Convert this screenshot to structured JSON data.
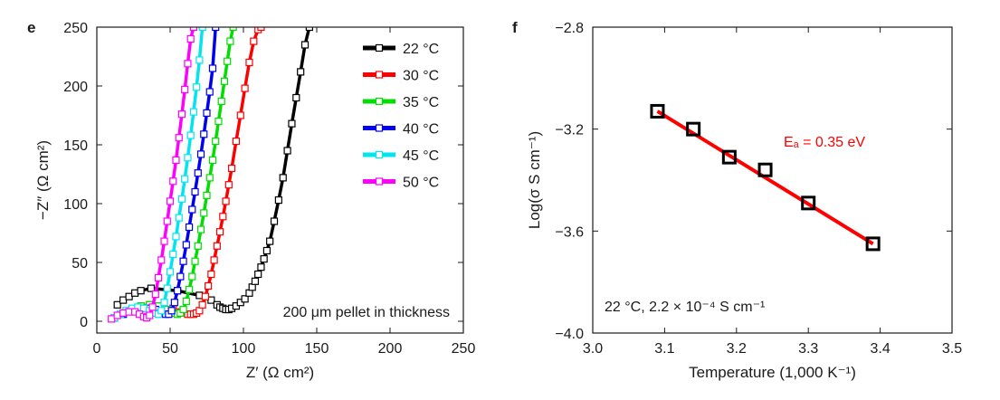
{
  "panels": {
    "e": {
      "letter": "e"
    },
    "f": {
      "letter": "f"
    }
  },
  "chart_data": [
    {
      "panel": "e",
      "type": "scatter",
      "xlabel": "Z′ (Ω cm²)",
      "ylabel": "−Z″ (Ω cm²)",
      "xlim": [
        0,
        250
      ],
      "ylim": [
        -10,
        250
      ],
      "xticks": [
        0,
        50,
        100,
        150,
        200,
        250
      ],
      "yticks": [
        0,
        50,
        100,
        150,
        200,
        250
      ],
      "annotation": "200 μm pellet in thickness",
      "legend_position": "top-right",
      "series": [
        {
          "name": "22 °C",
          "color": "#000000",
          "x": [
            14,
            18,
            22,
            26,
            30,
            37,
            55,
            70,
            78,
            82,
            84,
            86,
            88,
            90,
            92,
            95,
            98,
            101,
            104,
            106,
            108,
            110,
            112,
            114,
            116,
            118,
            121,
            124,
            127,
            130,
            133,
            136,
            139,
            142,
            145
          ],
          "y": [
            14,
            18,
            21,
            24,
            26,
            28,
            26,
            22,
            18,
            14,
            12,
            11,
            10,
            10,
            11,
            13,
            16,
            19,
            24,
            29,
            34,
            40,
            46,
            53,
            60,
            68,
            85,
            103,
            122,
            145,
            168,
            190,
            212,
            235,
            250
          ]
        },
        {
          "name": "30 °C",
          "color": "#ff0000",
          "x": [
            12,
            18,
            24,
            30,
            36,
            44,
            52,
            58,
            62,
            64,
            66,
            68,
            70,
            72,
            74,
            76,
            78,
            80,
            82,
            84,
            86,
            88,
            90,
            92,
            95,
            98,
            101,
            104,
            107,
            110,
            112
          ],
          "y": [
            3,
            7,
            10,
            13,
            14,
            13,
            11,
            8,
            6,
            6,
            6,
            7,
            9,
            14,
            21,
            30,
            40,
            52,
            64,
            76,
            89,
            102,
            116,
            130,
            153,
            175,
            198,
            220,
            238,
            248,
            250
          ]
        },
        {
          "name": "35 °C",
          "color": "#00dd00",
          "x": [
            12,
            18,
            24,
            30,
            36,
            42,
            48,
            52,
            55,
            57,
            59,
            61,
            63,
            65,
            67,
            69,
            71,
            73,
            75,
            77,
            79,
            81,
            83,
            85,
            87,
            89,
            91,
            93
          ],
          "y": [
            3,
            6,
            10,
            13,
            14,
            13,
            10,
            7,
            6,
            7,
            10,
            17,
            27,
            38,
            51,
            64,
            78,
            92,
            107,
            122,
            137,
            153,
            170,
            187,
            204,
            221,
            238,
            250
          ]
        },
        {
          "name": "40 °C",
          "color": "#0000ee",
          "x": [
            12,
            18,
            24,
            30,
            36,
            40,
            44,
            47,
            49,
            51,
            53,
            55,
            57,
            59,
            61,
            63,
            65,
            67,
            69,
            71,
            73,
            75,
            77,
            79,
            81
          ],
          "y": [
            3,
            6,
            9,
            11,
            11,
            10,
            8,
            6,
            6,
            9,
            16,
            26,
            38,
            51,
            65,
            80,
            95,
            110,
            126,
            142,
            159,
            177,
            195,
            215,
            250
          ]
        },
        {
          "name": "45 °C",
          "color": "#00e5ee",
          "x": [
            12,
            16,
            20,
            24,
            28,
            32,
            36,
            39,
            42,
            44,
            46,
            48,
            50,
            52,
            54,
            56,
            58,
            60,
            62,
            64,
            66,
            68,
            70,
            72
          ],
          "y": [
            3,
            6,
            9,
            11,
            12,
            11,
            9,
            7,
            6,
            9,
            16,
            28,
            42,
            57,
            72,
            88,
            104,
            121,
            139,
            158,
            178,
            199,
            222,
            250
          ]
        },
        {
          "name": "50 °C",
          "color": "#ff00ff",
          "x": [
            10,
            14,
            18,
            22,
            26,
            29,
            32,
            34,
            36,
            38,
            40,
            42,
            44,
            46,
            48,
            50,
            52,
            54,
            56,
            58,
            60,
            62,
            64,
            66
          ],
          "y": [
            2,
            5,
            7,
            8,
            8,
            6,
            4,
            3,
            5,
            12,
            23,
            37,
            52,
            68,
            85,
            102,
            119,
            137,
            156,
            176,
            197,
            219,
            240,
            250
          ]
        }
      ]
    },
    {
      "panel": "f",
      "type": "scatter",
      "xlabel": "Temperature (1,000 K⁻¹)",
      "ylabel": "Log(σ S cm⁻¹)",
      "xlim": [
        3.0,
        3.5
      ],
      "ylim": [
        -4.0,
        -2.8
      ],
      "xticks": [
        3.0,
        3.1,
        3.2,
        3.3,
        3.4,
        3.5
      ],
      "xtick_labels": [
        "3.0",
        "3.1",
        "3.2",
        "3.3",
        "3.4",
        "3.5"
      ],
      "yticks": [
        -4.0,
        -3.6,
        -3.2,
        -2.8
      ],
      "ytick_labels": [
        "−4.0",
        "−3.6",
        "−3.2",
        "−2.8"
      ],
      "fit_label": "Eₐ = 0.35 eV",
      "annotation": "22 °C, 2.2 × 10⁻⁴ S cm⁻¹",
      "points": {
        "x": [
          3.09,
          3.14,
          3.19,
          3.24,
          3.3,
          3.39
        ],
        "y": [
          -3.13,
          -3.2,
          -3.31,
          -3.36,
          -3.49,
          -3.65
        ]
      },
      "fit_line": {
        "color": "#ff0000",
        "x": [
          3.09,
          3.39
        ],
        "y": [
          -3.13,
          -3.65
        ]
      }
    }
  ]
}
